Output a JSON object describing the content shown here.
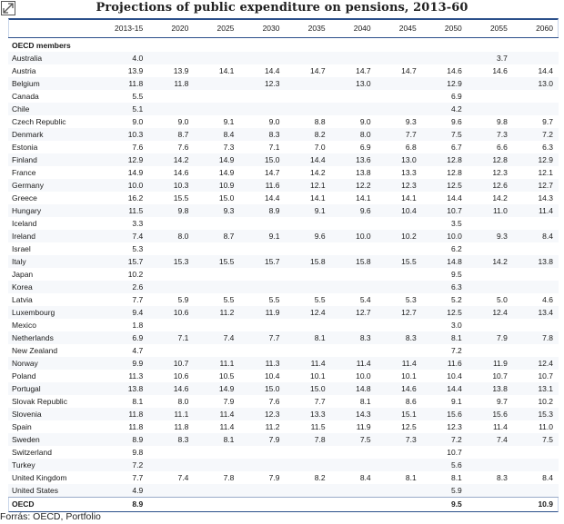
{
  "header": {
    "title": "Projections of public expenditure on pensions, 2013-60",
    "dot": "."
  },
  "table": {
    "columns": [
      "",
      "2013-15",
      "2020",
      "2025",
      "2030",
      "2035",
      "2040",
      "2045",
      "2050",
      "2055",
      "2060"
    ],
    "group_label": "OECD members",
    "rows": [
      [
        "Australia",
        "4.0",
        "",
        "",
        "",
        "",
        "",
        "",
        "",
        "3.7",
        ""
      ],
      [
        "Austria",
        "13.9",
        "13.9",
        "14.1",
        "14.4",
        "14.7",
        "14.7",
        "14.7",
        "14.6",
        "14.6",
        "14.4"
      ],
      [
        "Belgium",
        "11.8",
        "11.8",
        "",
        "12.3",
        "",
        "13.0",
        "",
        "12.9",
        "",
        "13.0"
      ],
      [
        "Canada",
        "5.5",
        "",
        "",
        "",
        "",
        "",
        "",
        "6.9",
        "",
        ""
      ],
      [
        "Chile",
        "5.1",
        "",
        "",
        "",
        "",
        "",
        "",
        "4.2",
        "",
        ""
      ],
      [
        "Czech Republic",
        "9.0",
        "9.0",
        "9.1",
        "9.0",
        "8.8",
        "9.0",
        "9.3",
        "9.6",
        "9.8",
        "9.7"
      ],
      [
        "Denmark",
        "10.3",
        "8.7",
        "8.4",
        "8.3",
        "8.2",
        "8.0",
        "7.7",
        "7.5",
        "7.3",
        "7.2"
      ],
      [
        "Estonia",
        "7.6",
        "7.6",
        "7.3",
        "7.1",
        "7.0",
        "6.9",
        "6.8",
        "6.7",
        "6.6",
        "6.3"
      ],
      [
        "Finland",
        "12.9",
        "14.2",
        "14.9",
        "15.0",
        "14.4",
        "13.6",
        "13.0",
        "12.8",
        "12.8",
        "12.9"
      ],
      [
        "France",
        "14.9",
        "14.6",
        "14.9",
        "14.7",
        "14.2",
        "13.8",
        "13.3",
        "12.8",
        "12.3",
        "12.1"
      ],
      [
        "Germany",
        "10.0",
        "10.3",
        "10.9",
        "11.6",
        "12.1",
        "12.2",
        "12.3",
        "12.5",
        "12.6",
        "12.7"
      ],
      [
        "Greece",
        "16.2",
        "15.5",
        "15.0",
        "14.4",
        "14.1",
        "14.1",
        "14.1",
        "14.4",
        "14.2",
        "14.3"
      ],
      [
        "Hungary",
        "11.5",
        "9.8",
        "9.3",
        "8.9",
        "9.1",
        "9.6",
        "10.4",
        "10.7",
        "11.0",
        "11.4"
      ],
      [
        "Iceland",
        "3.3",
        "",
        "",
        "",
        "",
        "",
        "",
        "3.5",
        "",
        ""
      ],
      [
        "Ireland",
        "7.4",
        "8.0",
        "8.7",
        "9.1",
        "9.6",
        "10.0",
        "10.2",
        "10.0",
        "9.3",
        "8.4"
      ],
      [
        "Israel",
        "5.3",
        "",
        "",
        "",
        "",
        "",
        "",
        "6.2",
        "",
        ""
      ],
      [
        "Italy",
        "15.7",
        "15.3",
        "15.5",
        "15.7",
        "15.8",
        "15.8",
        "15.5",
        "14.8",
        "14.2",
        "13.8"
      ],
      [
        "Japan",
        "10.2",
        "",
        "",
        "",
        "",
        "",
        "",
        "9.5",
        "",
        ""
      ],
      [
        "Korea",
        "2.6",
        "",
        "",
        "",
        "",
        "",
        "",
        "6.3",
        "",
        ""
      ],
      [
        "Latvia",
        "7.7",
        "5.9",
        "5.5",
        "5.5",
        "5.5",
        "5.4",
        "5.3",
        "5.2",
        "5.0",
        "4.6"
      ],
      [
        "Luxembourg",
        "9.4",
        "10.6",
        "11.2",
        "11.9",
        "12.4",
        "12.7",
        "12.7",
        "12.5",
        "12.4",
        "13.4"
      ],
      [
        "Mexico",
        "1.8",
        "",
        "",
        "",
        "",
        "",
        "",
        "3.0",
        "",
        ""
      ],
      [
        "Netherlands",
        "6.9",
        "7.1",
        "7.4",
        "7.7",
        "8.1",
        "8.3",
        "8.3",
        "8.1",
        "7.9",
        "7.8"
      ],
      [
        "New Zealand",
        "4.7",
        "",
        "",
        "",
        "",
        "",
        "",
        "7.2",
        "",
        ""
      ],
      [
        "Norway",
        "9.9",
        "10.7",
        "11.1",
        "11.3",
        "11.4",
        "11.4",
        "11.4",
        "11.6",
        "11.9",
        "12.4"
      ],
      [
        "Poland",
        "11.3",
        "10.6",
        "10.5",
        "10.4",
        "10.1",
        "10.0",
        "10.1",
        "10.4",
        "10.7",
        "10.7"
      ],
      [
        "Portugal",
        "13.8",
        "14.6",
        "14.9",
        "15.0",
        "15.0",
        "14.8",
        "14.6",
        "14.4",
        "13.8",
        "13.1"
      ],
      [
        "Slovak Republic",
        "8.1",
        "8.0",
        "7.9",
        "7.6",
        "7.7",
        "8.1",
        "8.6",
        "9.1",
        "9.7",
        "10.2"
      ],
      [
        "Slovenia",
        "11.8",
        "11.1",
        "11.4",
        "12.3",
        "13.3",
        "14.3",
        "15.1",
        "15.6",
        "15.6",
        "15.3"
      ],
      [
        "Spain",
        "11.8",
        "11.8",
        "11.4",
        "11.2",
        "11.5",
        "11.9",
        "12.5",
        "12.3",
        "11.4",
        "11.0"
      ],
      [
        "Sweden",
        "8.9",
        "8.3",
        "8.1",
        "7.9",
        "7.8",
        "7.5",
        "7.3",
        "7.2",
        "7.4",
        "7.5"
      ],
      [
        "Switzerland",
        "9.8",
        "",
        "",
        "",
        "",
        "",
        "",
        "10.7",
        "",
        ""
      ],
      [
        "Turkey",
        "7.2",
        "",
        "",
        "",
        "",
        "",
        "",
        "5.6",
        "",
        ""
      ],
      [
        "United Kingdom",
        "7.7",
        "7.4",
        "7.8",
        "7.9",
        "8.2",
        "8.4",
        "8.1",
        "8.1",
        "8.3",
        "8.4"
      ],
      [
        "United States",
        "4.9",
        "",
        "",
        "",
        "",
        "",
        "",
        "5.9",
        "",
        ""
      ]
    ],
    "total_row": [
      "OECD",
      "8.9",
      "",
      "",
      "",
      "",
      "",
      "",
      "9.5",
      "",
      "10.9"
    ]
  },
  "footer": {
    "source": "Forrás: OECD, Portfolio"
  }
}
